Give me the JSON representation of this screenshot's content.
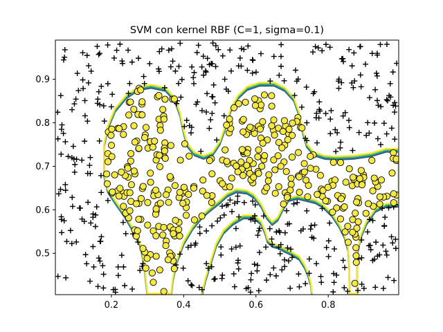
{
  "chart_data": {
    "type": "scatter",
    "title": "SVM con kernel RBF (C=1, sigma=0.1)",
    "xlabel": "",
    "ylabel": "",
    "xlim": [
      0.045,
      0.995
    ],
    "ylim": [
      0.405,
      0.99
    ],
    "x_ticks": [
      0.2,
      0.4,
      0.6,
      0.8
    ],
    "x_tick_labels": [
      "0.2",
      "0.4",
      "0.6",
      "0.8"
    ],
    "y_ticks": [
      0.5,
      0.6,
      0.7,
      0.8,
      0.9
    ],
    "y_tick_labels": [
      "0.5",
      "0.6",
      "0.7",
      "0.8",
      "0.9"
    ],
    "grid": false,
    "legend": "none",
    "decision_boundary_colors": [
      "#3b528b",
      "#21918c",
      "#5ec962",
      "#fde725"
    ],
    "series": [
      {
        "marker": "plus",
        "color": "#000000",
        "count_estimate": 460
      },
      {
        "marker": "circle",
        "color": "#f5e942",
        "edge_color": "#000000",
        "count_estimate": 370
      }
    ],
    "boundary": {
      "region_a": [
        [
          0.31,
          0.885
        ],
        [
          0.275,
          0.88
        ],
        [
          0.24,
          0.86
        ],
        [
          0.21,
          0.83
        ],
        [
          0.19,
          0.79
        ],
        [
          0.18,
          0.75
        ],
        [
          0.18,
          0.68
        ],
        [
          0.19,
          0.645
        ],
        [
          0.21,
          0.62
        ],
        [
          0.235,
          0.59
        ],
        [
          0.26,
          0.555
        ],
        [
          0.28,
          0.52
        ],
        [
          0.29,
          0.48
        ],
        [
          0.295,
          0.44
        ],
        [
          0.3,
          0.405
        ],
        [
          0.365,
          0.405
        ],
        [
          0.37,
          0.44
        ],
        [
          0.38,
          0.48
        ],
        [
          0.4,
          0.525
        ],
        [
          0.425,
          0.56
        ],
        [
          0.45,
          0.585
        ],
        [
          0.47,
          0.6
        ],
        [
          0.5,
          0.62
        ],
        [
          0.52,
          0.635
        ],
        [
          0.545,
          0.645
        ],
        [
          0.575,
          0.642
        ],
        [
          0.595,
          0.632
        ],
        [
          0.615,
          0.61
        ],
        [
          0.63,
          0.585
        ],
        [
          0.645,
          0.57
        ],
        [
          0.66,
          0.58
        ],
        [
          0.675,
          0.605
        ],
        [
          0.69,
          0.625
        ],
        [
          0.715,
          0.63
        ],
        [
          0.74,
          0.625
        ],
        [
          0.765,
          0.62
        ],
        [
          0.785,
          0.61
        ],
        [
          0.81,
          0.59
        ],
        [
          0.83,
          0.565
        ],
        [
          0.845,
          0.54
        ],
        [
          0.855,
          0.51
        ],
        [
          0.858,
          0.47
        ],
        [
          0.86,
          0.405
        ],
        [
          0.88,
          0.405
        ],
        [
          0.88,
          0.5
        ],
        [
          0.89,
          0.54
        ],
        [
          0.905,
          0.57
        ],
        [
          0.93,
          0.6
        ],
        [
          0.96,
          0.612
        ],
        [
          0.995,
          0.612
        ],
        [
          0.995,
          0.738
        ],
        [
          0.96,
          0.738
        ],
        [
          0.92,
          0.728
        ],
        [
          0.87,
          0.722
        ],
        [
          0.82,
          0.72
        ],
        [
          0.79,
          0.722
        ],
        [
          0.76,
          0.73
        ],
        [
          0.74,
          0.75
        ],
        [
          0.73,
          0.78
        ],
        [
          0.72,
          0.82
        ],
        [
          0.705,
          0.855
        ],
        [
          0.68,
          0.878
        ],
        [
          0.65,
          0.89
        ],
        [
          0.61,
          0.89
        ],
        [
          0.575,
          0.88
        ],
        [
          0.55,
          0.86
        ],
        [
          0.53,
          0.83
        ],
        [
          0.515,
          0.79
        ],
        [
          0.5,
          0.755
        ],
        [
          0.48,
          0.73
        ],
        [
          0.455,
          0.722
        ],
        [
          0.43,
          0.73
        ],
        [
          0.41,
          0.75
        ],
        [
          0.4,
          0.78
        ],
        [
          0.39,
          0.82
        ],
        [
          0.375,
          0.855
        ],
        [
          0.35,
          0.878
        ]
      ],
      "region_b": [
        [
          0.45,
          0.405
        ],
        [
          0.46,
          0.44
        ],
        [
          0.475,
          0.48
        ],
        [
          0.49,
          0.52
        ],
        [
          0.51,
          0.55
        ],
        [
          0.535,
          0.57
        ],
        [
          0.565,
          0.585
        ],
        [
          0.595,
          0.585
        ],
        [
          0.615,
          0.57
        ],
        [
          0.625,
          0.55
        ],
        [
          0.632,
          0.53
        ],
        [
          0.645,
          0.52
        ],
        [
          0.665,
          0.515
        ],
        [
          0.68,
          0.508
        ],
        [
          0.7,
          0.5
        ],
        [
          0.72,
          0.49
        ],
        [
          0.735,
          0.47
        ],
        [
          0.745,
          0.45
        ],
        [
          0.752,
          0.43
        ],
        [
          0.755,
          0.405
        ]
      ]
    }
  }
}
